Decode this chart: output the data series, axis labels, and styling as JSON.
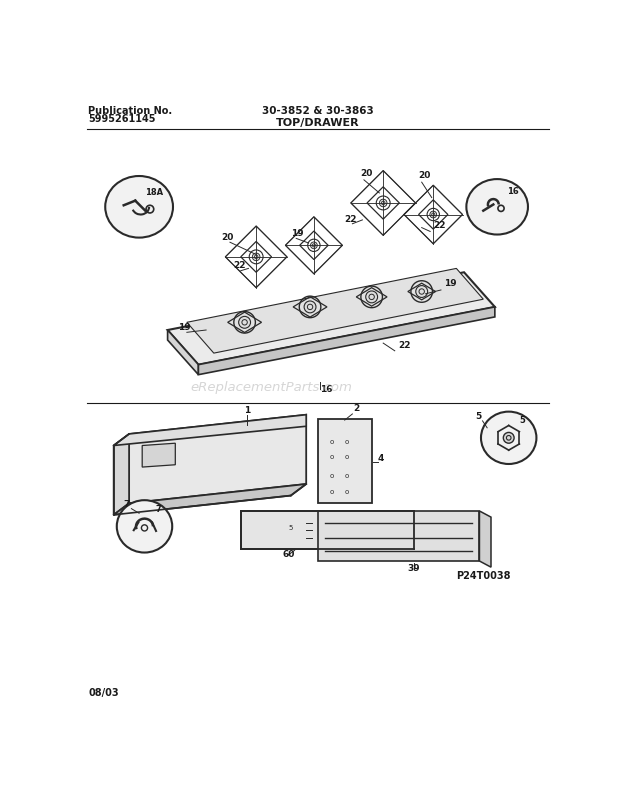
{
  "pub_no_label": "Publication No.",
  "pub_no_value": "5995261145",
  "title_center": "30-3852 & 30-3863",
  "title_section": "TOP/DRAWER",
  "footer_left": "08/03",
  "footer_right": "P24T0038",
  "watermark": "eReplacementParts.com",
  "bg_color": "#ffffff",
  "lc": "#1a1a1a",
  "dc": "#2a2a2a",
  "fc_light": "#f2f2f2",
  "fc_mid": "#e0e0e0",
  "fc_dark": "#c8c8c8"
}
